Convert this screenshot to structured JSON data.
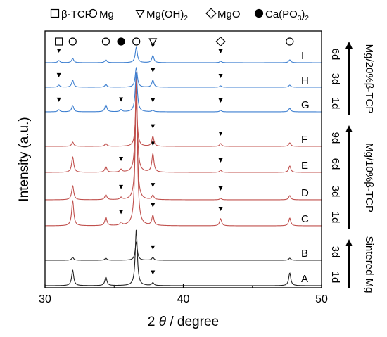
{
  "chart_data": {
    "type": "line",
    "xlabel_prefix": "2",
    "xlabel_symbol": "θ",
    "xlabel_suffix": " / degree",
    "ylabel": "Intensity (a.u.)",
    "xlim": [
      30,
      50
    ],
    "x_ticks": [
      30,
      40,
      50
    ],
    "grid": false,
    "legend": [
      {
        "marker": "open-square",
        "label": "β-TCP"
      },
      {
        "marker": "open-circle",
        "label": "Mg"
      },
      {
        "marker": "open-down-triangle",
        "label": "Mg(OH)",
        "sub": "2"
      },
      {
        "marker": "open-diamond",
        "label": "MgO"
      },
      {
        "marker": "filled-circle",
        "label": "Ca(PO",
        "sub": "3",
        "label_end": ")",
        "sub_end": "2"
      }
    ],
    "reference_marks": [
      {
        "marker": "open-square",
        "x": 31.0
      },
      {
        "marker": "open-circle",
        "x": 32.0
      },
      {
        "marker": "open-circle",
        "x": 34.4
      },
      {
        "marker": "filled-circle",
        "x": 35.5
      },
      {
        "marker": "open-circle",
        "x": 36.6
      },
      {
        "marker": "open-down-triangle",
        "x": 37.8
      },
      {
        "marker": "open-diamond",
        "x": 42.7
      },
      {
        "marker": "open-circle",
        "x": 47.7
      }
    ],
    "series_colors": {
      "sintered": "#222222",
      "mg10": "#c0504d",
      "mg20": "#3d7fd0"
    },
    "series": [
      {
        "label": "A",
        "time": "1d",
        "group": "sintered",
        "peaks": [
          [
            32.0,
            22
          ],
          [
            34.4,
            12
          ],
          [
            36.6,
            80
          ],
          [
            37.8,
            4
          ],
          [
            47.7,
            18
          ]
        ],
        "peak_marks": [
          37.8
        ]
      },
      {
        "label": "B",
        "time": "3d",
        "group": "sintered",
        "peaks": [
          [
            32.0,
            4
          ],
          [
            34.4,
            3
          ],
          [
            36.6,
            26
          ],
          [
            37.8,
            4
          ],
          [
            47.7,
            3
          ]
        ],
        "peak_marks": [
          37.8
        ]
      },
      {
        "label": "C",
        "time": "1d",
        "group": "mg10",
        "peaks": [
          [
            32.0,
            36
          ],
          [
            34.4,
            12
          ],
          [
            35.5,
            4
          ],
          [
            36.6,
            220
          ],
          [
            37.8,
            14
          ],
          [
            42.7,
            10
          ],
          [
            47.7,
            11
          ]
        ],
        "peak_marks": [
          35.5,
          37.8,
          42.7
        ]
      },
      {
        "label": "D",
        "time": "3d",
        "group": "mg10",
        "peaks": [
          [
            32.0,
            20
          ],
          [
            34.4,
            7
          ],
          [
            35.5,
            3
          ],
          [
            36.6,
            150
          ],
          [
            37.8,
            6
          ],
          [
            42.7,
            2
          ],
          [
            47.7,
            6
          ]
        ],
        "peak_marks": [
          35.5,
          37.8,
          42.7
        ]
      },
      {
        "label": "E",
        "time": "6d",
        "group": "mg10",
        "peaks": [
          [
            32.0,
            22
          ],
          [
            34.4,
            8
          ],
          [
            35.5,
            4
          ],
          [
            36.6,
            125
          ],
          [
            37.8,
            26
          ],
          [
            42.7,
            3
          ],
          [
            47.7,
            9
          ]
        ],
        "peak_marks": [
          35.5,
          37.8,
          42.7
        ]
      },
      {
        "label": "F",
        "time": "9d",
        "group": "mg10",
        "peaks": [
          [
            32.0,
            6
          ],
          [
            34.4,
            4
          ],
          [
            36.6,
            60
          ],
          [
            37.8,
            14
          ],
          [
            42.7,
            4
          ],
          [
            47.7,
            5
          ]
        ],
        "peak_marks": [
          37.8,
          42.7
        ]
      },
      {
        "label": "G",
        "time": "1d",
        "group": "mg20",
        "peaks": [
          [
            31.0,
            3
          ],
          [
            32.0,
            9
          ],
          [
            34.4,
            10
          ],
          [
            35.5,
            3
          ],
          [
            36.6,
            55
          ],
          [
            37.8,
            2
          ],
          [
            42.7,
            2
          ],
          [
            47.7,
            5
          ]
        ],
        "peak_marks": [
          31.0,
          35.5,
          37.8,
          42.7
        ]
      },
      {
        "label": "H",
        "time": "3d",
        "group": "mg20",
        "peaks": [
          [
            31.0,
            3
          ],
          [
            32.0,
            10
          ],
          [
            34.4,
            4
          ],
          [
            36.6,
            28
          ],
          [
            37.8,
            10
          ],
          [
            42.7,
            2
          ],
          [
            47.7,
            3
          ]
        ],
        "peak_marks": [
          31.0,
          37.8,
          42.7
        ]
      },
      {
        "label": "I",
        "time": "6d",
        "group": "mg20",
        "peaks": [
          [
            31.0,
            3
          ],
          [
            32.0,
            6
          ],
          [
            34.4,
            4
          ],
          [
            36.6,
            22
          ],
          [
            37.8,
            10
          ],
          [
            42.7,
            2
          ],
          [
            47.7,
            4
          ]
        ],
        "peak_marks": [
          31.0,
          37.8,
          42.7
        ]
      }
    ],
    "group_labels": [
      {
        "group": "sintered",
        "text": "Sintered Mg"
      },
      {
        "group": "mg10",
        "text": "Mg/10%β-TCP"
      },
      {
        "group": "mg20",
        "text": "Mg/20%β-TCP"
      }
    ]
  }
}
